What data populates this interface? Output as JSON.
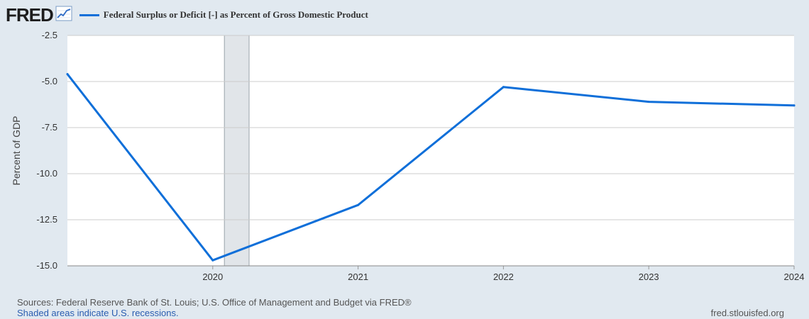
{
  "header": {
    "logo_text": "FRED",
    "logo_icon": "line-chart-icon",
    "legend_label": "Federal Surplus or Deficit [-] as Percent of Gross Domestic Product"
  },
  "footer": {
    "sources": "Sources: Federal Reserve Bank of St. Louis; U.S. Office of Management and Budget via FRED®",
    "recession_note": "Shaded areas indicate U.S. recessions.",
    "site": "fred.stlouisfed.org"
  },
  "colors": {
    "page_background": "#e1e9f0",
    "plot_background": "#ffffff",
    "series": "#0f6fd9",
    "recession_shade": "#e1e5e9",
    "grid": "#cccccc"
  },
  "chart_data": {
    "type": "line",
    "title": "",
    "xlabel": "",
    "ylabel": "Percent of GDP",
    "x": [
      2019,
      2020,
      2021,
      2022,
      2023,
      2024
    ],
    "series": [
      {
        "name": "Federal Surplus or Deficit [-] as Percent of Gross Domestic Product",
        "values": [
          -4.6,
          -14.7,
          -11.7,
          -5.3,
          -6.1,
          -6.3
        ]
      }
    ],
    "xlim": [
      2019,
      2024
    ],
    "ylim": [
      -15.0,
      -2.5
    ],
    "x_ticks": [
      2020,
      2021,
      2022,
      2023,
      2024
    ],
    "x_tick_labels": [
      "2020",
      "2021",
      "2022",
      "2023",
      "2024"
    ],
    "y_ticks": [
      -2.5,
      -5.0,
      -7.5,
      -10.0,
      -12.5,
      -15.0
    ],
    "y_tick_labels": [
      "-2.5",
      "-5.0",
      "-7.5",
      "-10.0",
      "-12.5",
      "-15.0"
    ],
    "recessions": [
      {
        "start": 2020.08,
        "end": 2020.25
      }
    ],
    "grid": true,
    "legend_position": "top-left"
  }
}
